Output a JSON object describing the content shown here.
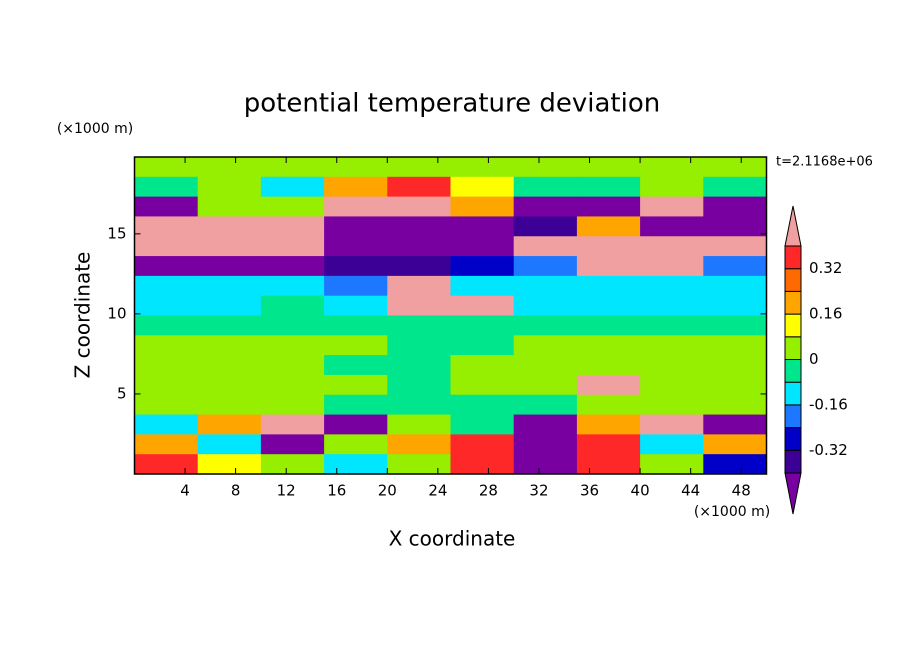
{
  "chart_data": {
    "type": "contour",
    "title": "potential temperature deviation",
    "xlabel": "X coordinate",
    "ylabel": "Z coordinate",
    "xunit": "(×1000 m)",
    "yunit": "(×1000 m)",
    "time_label": "t=2.1168e+06",
    "xlim": [
      0,
      50
    ],
    "ylim": [
      0,
      19.8
    ],
    "xticks": [
      4,
      8,
      12,
      16,
      20,
      24,
      28,
      32,
      36,
      40,
      44,
      48
    ],
    "yticks": [
      5,
      10,
      15
    ],
    "levels": [
      -0.4,
      -0.32,
      -0.24,
      -0.16,
      -0.08,
      0,
      0.08,
      0.16,
      0.24,
      0.32,
      0.4
    ],
    "colors": [
      "#7800a0",
      "#3c0096",
      "#0000c8",
      "#1e78ff",
      "#00e6ff",
      "#00e68c",
      "#96ee00",
      "#ffff00",
      "#ffa500",
      "#ff6a00",
      "#ff2828",
      "#f0a0a0"
    ],
    "colorbar_ticks": [
      -0.32,
      -0.16,
      0,
      0.16,
      0.32
    ],
    "field": [
      [
        0.04,
        0.04,
        0.04,
        0.04,
        0.04,
        0.04,
        0.04,
        0.04,
        0.04,
        0.04
      ],
      [
        -0.04,
        0.04,
        -0.12,
        0.2,
        0.36,
        0.12,
        -0.04,
        -0.04,
        0.04,
        -0.04
      ],
      [
        -0.44,
        0.04,
        0.04,
        0.44,
        0.44,
        0.2,
        -0.44,
        -0.44,
        0.44,
        -0.44
      ],
      [
        0.44,
        0.44,
        0.44,
        -0.44,
        -0.44,
        -0.44,
        -0.36,
        0.2,
        -0.44,
        -0.44
      ],
      [
        0.44,
        0.44,
        0.44,
        -0.44,
        -0.44,
        -0.44,
        0.44,
        0.44,
        0.44,
        0.44
      ],
      [
        -0.44,
        -0.44,
        -0.44,
        -0.36,
        -0.36,
        -0.28,
        -0.2,
        0.44,
        0.44,
        -0.2
      ],
      [
        -0.12,
        -0.12,
        -0.12,
        -0.2,
        0.44,
        -0.12,
        -0.12,
        -0.12,
        -0.12,
        -0.12
      ],
      [
        -0.12,
        -0.12,
        -0.04,
        -0.12,
        0.44,
        0.44,
        -0.12,
        -0.12,
        -0.12,
        -0.12
      ],
      [
        -0.04,
        -0.04,
        -0.04,
        -0.04,
        -0.04,
        -0.04,
        -0.04,
        -0.04,
        -0.04,
        -0.04
      ],
      [
        0.04,
        0.04,
        0.04,
        0.04,
        -0.04,
        -0.04,
        0.04,
        0.04,
        0.04,
        0.04
      ],
      [
        0.04,
        0.04,
        0.04,
        -0.04,
        -0.04,
        0.04,
        0.04,
        0.04,
        0.04,
        0.04
      ],
      [
        0.04,
        0.04,
        0.04,
        0.04,
        -0.04,
        0.04,
        0.04,
        0.44,
        0.04,
        0.04
      ],
      [
        0.04,
        0.04,
        0.04,
        -0.04,
        -0.04,
        -0.04,
        -0.04,
        0.04,
        0.04,
        0.04
      ],
      [
        -0.12,
        0.2,
        0.44,
        -0.44,
        0.04,
        -0.04,
        -0.44,
        0.2,
        0.44,
        -0.44
      ],
      [
        0.2,
        -0.12,
        -0.44,
        0.04,
        0.2,
        0.36,
        -0.44,
        0.36,
        -0.12,
        0.2
      ],
      [
        0.36,
        0.12,
        0.04,
        -0.12,
        0.04,
        0.36,
        -0.44,
        0.36,
        0.04,
        -0.28
      ]
    ]
  }
}
